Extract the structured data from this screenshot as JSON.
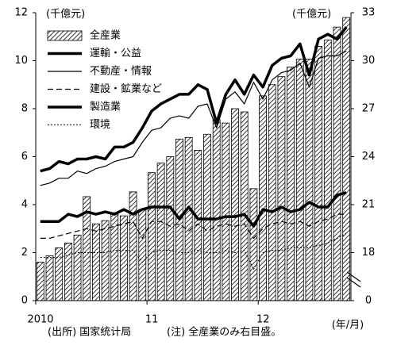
{
  "chart_data": {
    "type": "combo",
    "y_label": "(千億元)",
    "y2_label": "(千億元)",
    "x_label": "(年/月)",
    "source": "(出所) 国家统计局",
    "note": "(注) 全産業のみ右目盛。",
    "categories": [
      "2010",
      null,
      null,
      null,
      null,
      null,
      null,
      null,
      null,
      null,
      null,
      null,
      "11",
      null,
      null,
      null,
      null,
      null,
      null,
      null,
      null,
      null,
      null,
      null,
      "12",
      null,
      null,
      null,
      null,
      null,
      null,
      null,
      null,
      null
    ],
    "ylim": [
      0,
      12
    ],
    "yticks": [
      0,
      2,
      4,
      6,
      8,
      10,
      12
    ],
    "y2lim": [
      0,
      33
    ],
    "y2ticks": [
      0,
      18,
      21,
      24,
      27,
      30,
      33
    ],
    "y2_break": [
      0,
      15
    ],
    "series": [
      {
        "name": "全産業",
        "type": "bar",
        "axis": "y2",
        "color": "#000000",
        "values": [
          17.4,
          17.8,
          18.3,
          18.6,
          19.1,
          21.5,
          19.8,
          20.0,
          20.5,
          20.3,
          21.8,
          20.7,
          23.0,
          23.6,
          24.0,
          25.1,
          25.2,
          24.4,
          25.4,
          26.3,
          26.1,
          27.0,
          26.8,
          22.0,
          27.8,
          28.5,
          29.0,
          29.6,
          30.1,
          30.1,
          30.9,
          31.3,
          32.1,
          32.7
        ]
      },
      {
        "name": "運輸・公益",
        "type": "line",
        "color": "#000000",
        "width": 3.5,
        "dash": "none",
        "values": [
          3.3,
          3.3,
          3.3,
          3.6,
          3.5,
          3.7,
          3.6,
          3.7,
          3.6,
          3.8,
          3.6,
          3.8,
          3.9,
          3.9,
          3.9,
          3.4,
          3.9,
          3.4,
          3.4,
          3.4,
          3.5,
          3.5,
          3.6,
          3.1,
          3.8,
          3.7,
          3.9,
          3.7,
          3.8,
          4.1,
          3.9,
          3.9,
          4.4,
          4.5
        ]
      },
      {
        "name": "不動産・情報",
        "type": "line",
        "color": "#000000",
        "width": 1.2,
        "dash": "none",
        "values": [
          4.8,
          4.9,
          5.1,
          5.1,
          5.4,
          5.3,
          5.5,
          5.6,
          5.8,
          5.9,
          6.0,
          6.6,
          7.1,
          7.2,
          7.6,
          7.7,
          7.6,
          8.1,
          8.2,
          7.2,
          8.4,
          8.7,
          8.2,
          9.1,
          8.4,
          9.2,
          9.5,
          9.6,
          9.9,
          8.9,
          10.1,
          10.2,
          10.2,
          10.4
        ]
      },
      {
        "name": "建設・鉱業など",
        "type": "line",
        "color": "#000000",
        "width": 1.2,
        "dash": "7 4",
        "values": [
          2.6,
          2.6,
          2.7,
          2.8,
          2.9,
          3.0,
          2.9,
          3.0,
          3.1,
          3.2,
          3.3,
          2.6,
          3.3,
          3.3,
          3.1,
          3.2,
          2.9,
          3.2,
          2.9,
          3.1,
          3.2,
          3.1,
          3.2,
          2.6,
          3.0,
          3.2,
          3.3,
          3.2,
          3.3,
          3.1,
          3.3,
          3.4,
          3.6,
          3.6
        ]
      },
      {
        "name": "製造業",
        "type": "line",
        "color": "#000000",
        "width": 3.5,
        "dash": "none",
        "values": [
          5.4,
          5.5,
          5.8,
          5.7,
          5.9,
          5.9,
          6.0,
          5.9,
          6.4,
          6.4,
          6.6,
          7.2,
          7.9,
          8.2,
          8.4,
          8.6,
          8.6,
          9.0,
          8.8,
          7.4,
          8.6,
          9.2,
          8.6,
          9.4,
          8.9,
          9.8,
          10.1,
          10.2,
          10.7,
          9.4,
          10.9,
          11.1,
          10.9,
          11.4
        ]
      },
      {
        "name": "環境",
        "type": "line",
        "color": "#000000",
        "width": 1,
        "dash": "2 2",
        "values": [
          1.8,
          1.8,
          1.8,
          1.9,
          2.0,
          2.0,
          2.0,
          2.0,
          2.1,
          2.1,
          2.1,
          1.6,
          2.0,
          2.1,
          2.1,
          2.0,
          2.0,
          2.1,
          2.0,
          2.0,
          2.1,
          2.0,
          2.1,
          1.3,
          2.0,
          2.1,
          2.1,
          2.2,
          2.2,
          2.2,
          2.3,
          2.4,
          2.6,
          2.8
        ]
      }
    ]
  }
}
